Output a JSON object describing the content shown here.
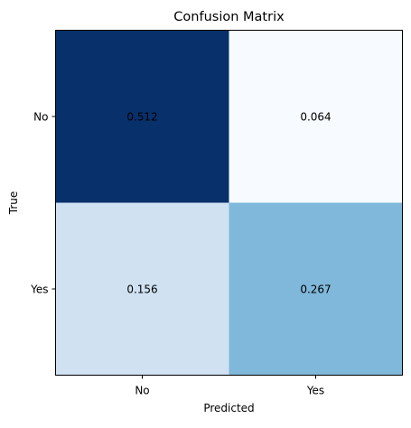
{
  "chart_data": {
    "type": "heatmap",
    "title": "Confusion Matrix",
    "xlabel": "Predicted",
    "ylabel": "True",
    "x_categories": [
      "No",
      "Yes"
    ],
    "y_categories": [
      "No",
      "Yes"
    ],
    "values": [
      [
        0.512,
        0.064
      ],
      [
        0.156,
        0.267
      ]
    ],
    "colormap": "Blues",
    "cell_colors": [
      [
        "#08306b",
        "#f7fbff"
      ],
      [
        "#d0e1f2",
        "#7fb8da"
      ]
    ],
    "grid": false
  }
}
